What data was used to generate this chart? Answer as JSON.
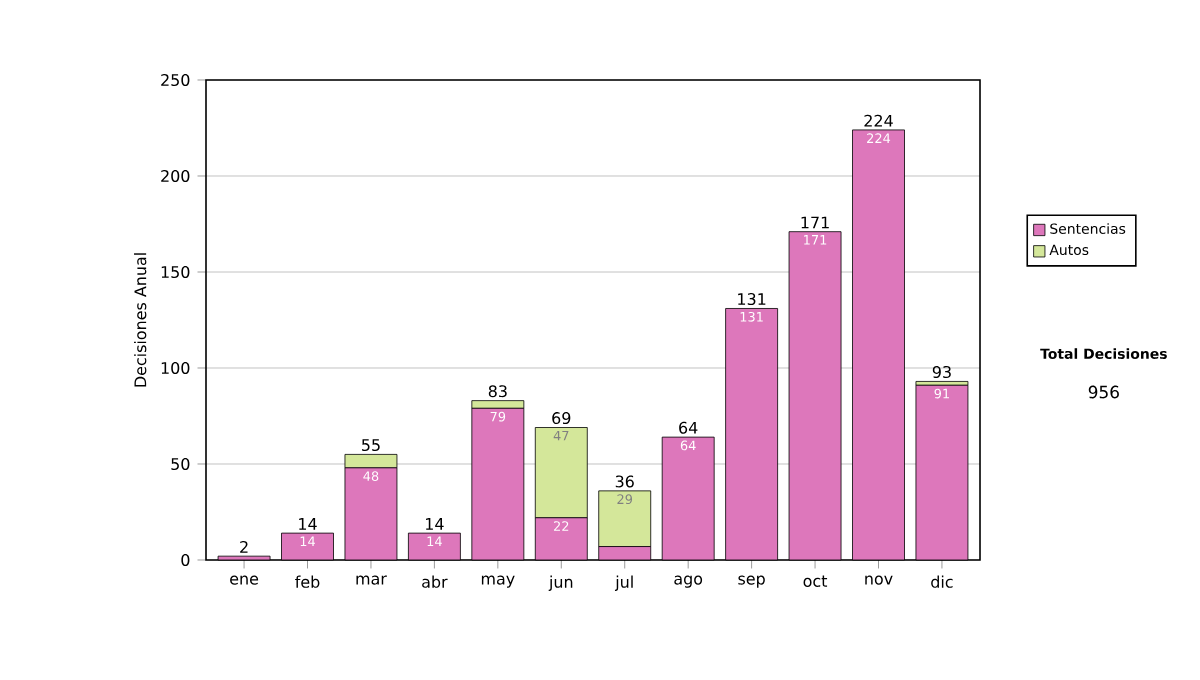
{
  "chart_data": {
    "type": "bar",
    "stacked": true,
    "ylabel": "Decisiones Anual",
    "categories": [
      "ene",
      "feb",
      "mar",
      "abr",
      "may",
      "jun",
      "jul",
      "ago",
      "sep",
      "oct",
      "nov",
      "dic"
    ],
    "series": [
      {
        "name": "Sentencias",
        "color": "#dd77bb",
        "values": [
          2,
          14,
          48,
          14,
          79,
          22,
          7,
          64,
          131,
          171,
          224,
          91
        ],
        "value_labels": [
          null,
          "14",
          "48",
          "14",
          "79",
          "22",
          null,
          "64",
          "131",
          "171",
          "224",
          "91"
        ]
      },
      {
        "name": "Autos",
        "color": "#d4e79a",
        "values": [
          0,
          0,
          7,
          0,
          4,
          47,
          29,
          0,
          0,
          0,
          0,
          2
        ],
        "value_labels": [
          null,
          null,
          null,
          null,
          null,
          "47",
          "29",
          null,
          null,
          null,
          null,
          null
        ]
      }
    ],
    "totals": [
      "2",
      "14",
      "55",
      "14",
      "83",
      "69",
      "36",
      "64",
      "131",
      "171",
      "224",
      "93"
    ],
    "ylim": [
      0,
      250
    ],
    "yticks": [
      0,
      50,
      100,
      150,
      200,
      250
    ],
    "grid": "y",
    "legend": "right",
    "annotations": [
      "Total Decisiones",
      "956"
    ]
  }
}
